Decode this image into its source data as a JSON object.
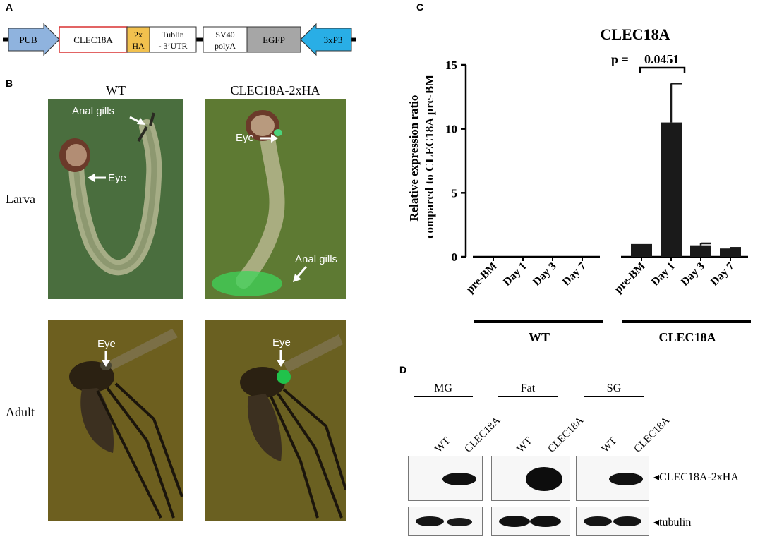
{
  "panels": {
    "a": "A",
    "b": "B",
    "c": "C",
    "d": "D"
  },
  "construct": {
    "segments": [
      "PUB",
      "CLEC18A",
      "2x HA",
      "Tublin - 3'UTR",
      "SV40 polyA",
      "EGFP",
      "3xP3"
    ],
    "colors": {
      "pub": "#8fb3de",
      "clec18a_border": "#d93030",
      "ha": "#f2c14e",
      "egfp": "#a6a6a6",
      "p3": "#29aee6"
    }
  },
  "photos": {
    "col_wt": "WT",
    "col_tg": "CLEC18A-2xHA",
    "row_larva": "Larva",
    "row_adult": "Adult",
    "labels": {
      "anal_gills": "Anal gills",
      "eye": "Eye"
    }
  },
  "chart_data": {
    "type": "bar",
    "title": "CLEC18A",
    "ylabel": "Relative expression ratio compared to CLEC18A pre-BM",
    "ylim": [
      0,
      15
    ],
    "yticks": [
      0,
      5,
      10,
      15
    ],
    "categories": [
      "pre-BM",
      "Day 1",
      "Day 3",
      "Day 7",
      "pre-BM",
      "Day 1",
      "Day 3",
      "Day 7"
    ],
    "groups": [
      {
        "name": "WT",
        "values": [
          0,
          0,
          0,
          0
        ],
        "errors": [
          0,
          0,
          0,
          0
        ]
      },
      {
        "name": "CLEC18A",
        "values": [
          1.0,
          10.5,
          0.9,
          0.65
        ],
        "errors": [
          0,
          3.05,
          0.15,
          0.05
        ]
      }
    ],
    "annotation": {
      "p_label": "p =",
      "p_value": "0.0451"
    },
    "bar_color": "#1a1a1a"
  },
  "blot": {
    "groups": [
      "MG",
      "Fat",
      "SG"
    ],
    "lanes": [
      "WT",
      "CLEC18A"
    ],
    "bands": [
      "CLEC18A-2xHA",
      "tubulin"
    ],
    "arrow": "◂"
  }
}
